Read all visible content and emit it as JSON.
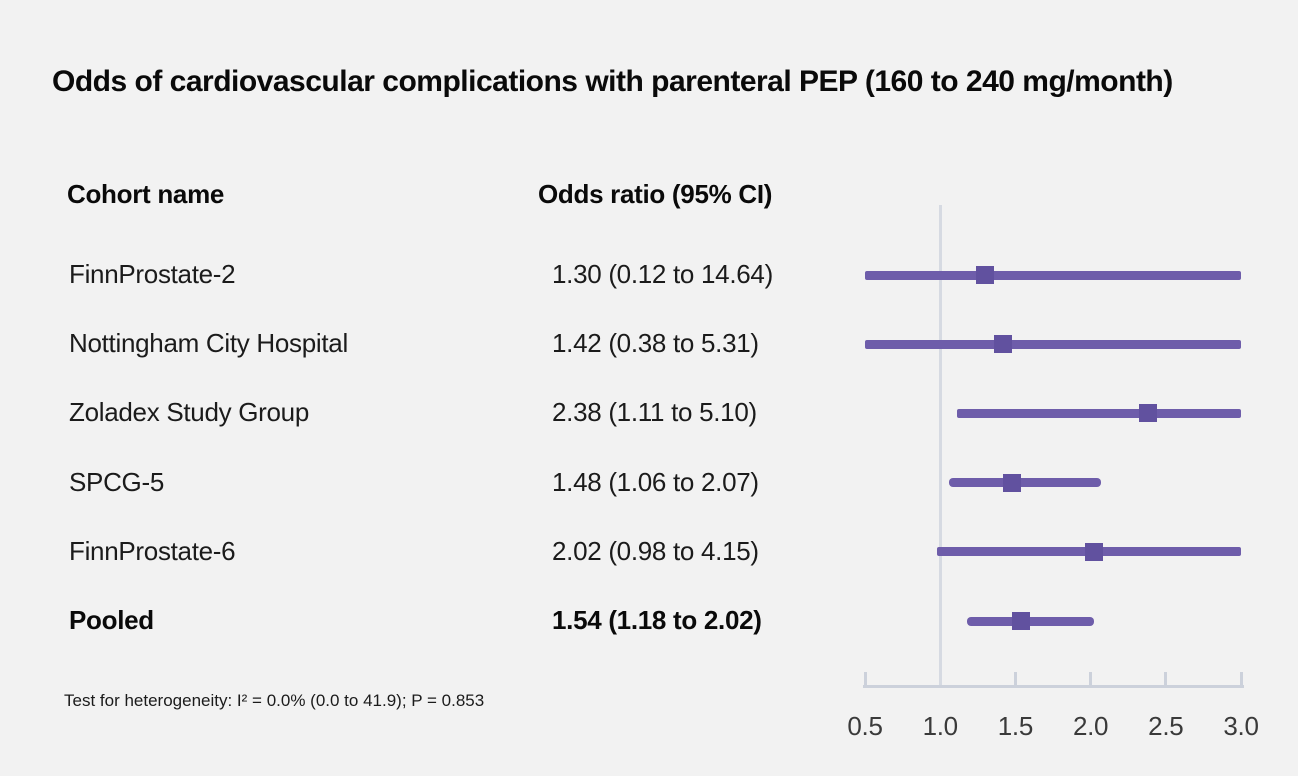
{
  "title": "Odds of cardiovascular complications with parenteral PEP (160 to 240 mg/month)",
  "table": {
    "col1_header": "Cohort name",
    "col2_header": "Odds ratio (95% CI)"
  },
  "footnote": "Test for heterogeneity: I² = 0.0% (0.0 to 41.9); P = 0.853",
  "colors": {
    "background": "#f2f2f2",
    "ci_line": "#6e5daa",
    "marker": "#61519f",
    "axis": "#ccd1db",
    "reference_line": "#d6dae2",
    "text": "#1b1b1b"
  },
  "chart_data": {
    "type": "scatter",
    "subtype": "forest-plot",
    "title": "Odds of cardiovascular complications with parenteral PEP (160 to 240 mg/month)",
    "xlabel": "",
    "ylabel": "",
    "xlim": [
      0.5,
      3.0
    ],
    "x_ticks": [
      0.5,
      1.0,
      1.5,
      2.0,
      2.5,
      3.0
    ],
    "x_tick_labels": [
      "0.5",
      "1.0",
      "1.5",
      "2.0",
      "2.5",
      "3.0"
    ],
    "reference_line_x": 1.0,
    "grid": false,
    "legend": false,
    "rows": [
      {
        "label": "FinnProstate-2",
        "or": 1.3,
        "ci_low": 0.12,
        "ci_high": 14.64,
        "or_text": "1.30 (0.12 to 14.64)",
        "pooled": false
      },
      {
        "label": "Nottingham City Hospital",
        "or": 1.42,
        "ci_low": 0.38,
        "ci_high": 5.31,
        "or_text": "1.42 (0.38 to 5.31)",
        "pooled": false
      },
      {
        "label": "Zoladex Study Group",
        "or": 2.38,
        "ci_low": 1.11,
        "ci_high": 5.1,
        "or_text": "2.38 (1.11 to 5.10)",
        "pooled": false
      },
      {
        "label": "SPCG-5",
        "or": 1.48,
        "ci_low": 1.06,
        "ci_high": 2.07,
        "or_text": "1.48 (1.06 to 2.07)",
        "pooled": false
      },
      {
        "label": "FinnProstate-6",
        "or": 2.02,
        "ci_low": 0.98,
        "ci_high": 4.15,
        "or_text": "2.02 (0.98 to 4.15)",
        "pooled": false
      },
      {
        "label": "Pooled",
        "or": 1.54,
        "ci_low": 1.18,
        "ci_high": 2.02,
        "or_text": "1.54 (1.18 to 2.02)",
        "pooled": true
      }
    ]
  }
}
